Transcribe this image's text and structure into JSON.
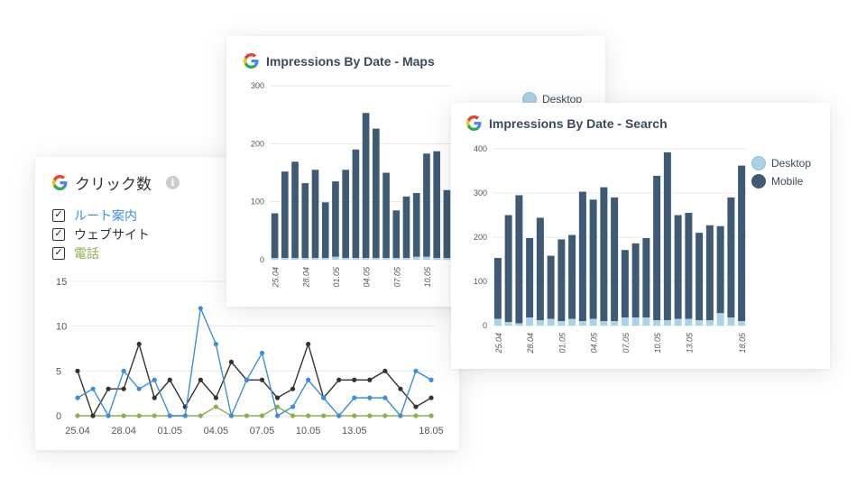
{
  "colors": {
    "desktop": "#a9d2e6",
    "mobile": "#3e5a75",
    "route": "#3a8fd9",
    "website": "#333333",
    "phone": "#8bb14a",
    "grid": "#e6e9ed"
  },
  "clicks_card": {
    "title": "クリック数",
    "info_icon": "i",
    "legend": [
      {
        "label": "ルート案内",
        "checked": true,
        "color": "#3a8fd9"
      },
      {
        "label": "ウェブサイト",
        "checked": true,
        "color": "#333333"
      },
      {
        "label": "電話",
        "checked": true,
        "color": "#8bb14a"
      }
    ]
  },
  "maps_card": {
    "title": "Impressions By Date - Maps",
    "legend": [
      "Desktop"
    ]
  },
  "search_card": {
    "title": "Impressions By Date - Search",
    "legend": [
      "Desktop",
      "Mobile"
    ]
  },
  "chart_data": [
    {
      "type": "line",
      "title": "クリック数",
      "ylim": [
        0,
        15
      ],
      "yticks": [
        0,
        5,
        10,
        15
      ],
      "xtick_labels": [
        "25.04",
        "28.04",
        "01.05",
        "04.05",
        "07.05",
        "10.05",
        "13.05",
        "18.05"
      ],
      "xtick_index": [
        0,
        3,
        6,
        9,
        12,
        15,
        18,
        23
      ],
      "x": [
        "25.04",
        "26.04",
        "27.04",
        "28.04",
        "29.04",
        "30.04",
        "01.05",
        "02.05",
        "03.05",
        "04.05",
        "05.05",
        "06.05",
        "07.05",
        "08.05",
        "09.05",
        "10.05",
        "11.05",
        "12.05",
        "13.05",
        "14.05",
        "15.05",
        "16.05",
        "17.05",
        "18.05"
      ],
      "grid": true,
      "series": [
        {
          "name": "ルート案内",
          "values": [
            2,
            3,
            0,
            5,
            3,
            4,
            0,
            0,
            12,
            8,
            0,
            4,
            7,
            0,
            1,
            4,
            2,
            0,
            2,
            2,
            2,
            0,
            5,
            4
          ]
        },
        {
          "name": "ウェブサイト",
          "values": [
            5,
            0,
            3,
            3,
            8,
            2,
            4,
            1,
            4,
            2,
            6,
            4,
            4,
            2,
            3,
            8,
            2,
            4,
            4,
            4,
            5,
            3,
            1,
            2
          ]
        },
        {
          "name": "電話",
          "values": [
            0,
            0,
            0,
            0,
            0,
            0,
            0,
            0,
            0,
            1,
            0,
            0,
            0,
            1,
            0,
            0,
            0,
            0,
            0,
            0,
            0,
            0,
            0,
            0
          ]
        }
      ]
    },
    {
      "type": "bar",
      "title": "Impressions By Date - Maps",
      "ylim": [
        0,
        300
      ],
      "yticks": [
        0,
        100,
        200,
        300
      ],
      "xtick_labels": [
        "25.04",
        "28.04",
        "01.05",
        "04.05",
        "07.05",
        "10.05"
      ],
      "xtick_index": [
        0,
        3,
        6,
        9,
        12,
        15
      ],
      "stacked": true,
      "legend": "right",
      "series": [
        {
          "name": "Desktop",
          "values": [
            3,
            3,
            3,
            3,
            3,
            3,
            5,
            3,
            3,
            3,
            3,
            3,
            3,
            3,
            5,
            5,
            3,
            3
          ]
        },
        {
          "name": "Mobile",
          "values": [
            77,
            149,
            166,
            129,
            152,
            96,
            130,
            152,
            187,
            250,
            223,
            147,
            82,
            106,
            110,
            178,
            184,
            117
          ]
        }
      ]
    },
    {
      "type": "bar",
      "title": "Impressions By Date - Search",
      "ylim": [
        0,
        400
      ],
      "yticks": [
        0,
        100,
        200,
        300,
        400
      ],
      "xtick_labels": [
        "25.04",
        "28.04",
        "01.05",
        "04.05",
        "07.05",
        "10.05",
        "13.05",
        "18.05"
      ],
      "xtick_index": [
        0,
        3,
        6,
        9,
        12,
        15,
        18,
        23
      ],
      "stacked": true,
      "legend": "right",
      "series": [
        {
          "name": "Desktop",
          "values": [
            15,
            8,
            5,
            18,
            12,
            15,
            10,
            15,
            10,
            15,
            10,
            10,
            18,
            18,
            18,
            12,
            12,
            15,
            15,
            12,
            12,
            28,
            18,
            10
          ]
        },
        {
          "name": "Mobile",
          "values": [
            138,
            242,
            290,
            180,
            232,
            143,
            185,
            190,
            293,
            270,
            303,
            280,
            153,
            168,
            180,
            327,
            380,
            235,
            240,
            198,
            215,
            197,
            272,
            352
          ]
        }
      ]
    }
  ]
}
